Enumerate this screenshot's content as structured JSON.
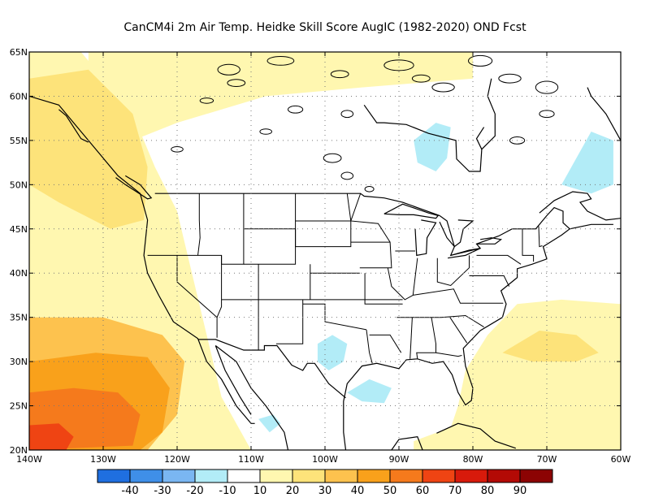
{
  "title": "CanCM4i  2m Air Temp. Heidke Skill Score AugIC (1982-2020) OND Fcst",
  "map": {
    "lon_range": [
      -140,
      -60
    ],
    "lat_range": [
      20,
      65
    ],
    "lat_ticks": [
      {
        "value": 65,
        "label": "65N"
      },
      {
        "value": 60,
        "label": "60N"
      },
      {
        "value": 55,
        "label": "55N"
      },
      {
        "value": 50,
        "label": "50N"
      },
      {
        "value": 45,
        "label": "45N"
      },
      {
        "value": 40,
        "label": "40N"
      },
      {
        "value": 35,
        "label": "35N"
      },
      {
        "value": 30,
        "label": "30N"
      },
      {
        "value": 25,
        "label": "25N"
      },
      {
        "value": 20,
        "label": "20N"
      }
    ],
    "lon_ticks": [
      {
        "value": -140,
        "label": "140W"
      },
      {
        "value": -130,
        "label": "130W"
      },
      {
        "value": -120,
        "label": "120W"
      },
      {
        "value": -110,
        "label": "110W"
      },
      {
        "value": -100,
        "label": "100W"
      },
      {
        "value": -90,
        "label": "90W"
      },
      {
        "value": -80,
        "label": "80W"
      },
      {
        "value": -70,
        "label": "70W"
      },
      {
        "value": -60,
        "label": "60W"
      }
    ],
    "grid": "dotted"
  },
  "colorbar": {
    "colors": [
      "#1f6fe0",
      "#3f8fe8",
      "#7ab6f2",
      "#b2ecf7",
      "#ffffff",
      "#fff7b0",
      "#fde37a",
      "#fdc24e",
      "#f9a11b",
      "#f57a1c",
      "#ef4413",
      "#d81a0b",
      "#b30a05",
      "#8c0303"
    ],
    "labels": [
      "-40",
      "-30",
      "-20",
      "-10",
      "10",
      "20",
      "30",
      "40",
      "50",
      "60",
      "70",
      "80",
      "90"
    ]
  },
  "skill_regions": [
    {
      "level": 20,
      "color": "#fff7b0",
      "area": "northern Canada patches",
      "lon": [
        -132,
        -80
      ],
      "lat": [
        55,
        65
      ]
    },
    {
      "level": 20,
      "color": "#fff7b0",
      "area": "North Pacific",
      "lon": [
        -140,
        -118
      ],
      "lat": [
        20,
        65
      ]
    },
    {
      "level": 30,
      "color": "#fde37a",
      "area": "Gulf of Alaska coast",
      "lon": [
        -140,
        -124
      ],
      "lat": [
        45,
        65
      ]
    },
    {
      "level": 40,
      "color": "#fdc24e",
      "area": "subtropical East Pacific",
      "lon": [
        -140,
        -119
      ],
      "lat": [
        20,
        35
      ]
    },
    {
      "level": 50,
      "color": "#f9a11b",
      "area": "subtropical East Pacific core",
      "lon": [
        -140,
        -121
      ],
      "lat": [
        20,
        30
      ]
    },
    {
      "level": 60,
      "color": "#f57a1c",
      "area": "subtropical East Pacific max",
      "lon": [
        -140,
        -125
      ],
      "lat": [
        20,
        27
      ]
    },
    {
      "level": 70,
      "color": "#ef4413",
      "area": "southwest corner",
      "lon": [
        -140,
        -134
      ],
      "lat": [
        20,
        22.5
      ]
    },
    {
      "level": 20,
      "color": "#fff7b0",
      "area": "western Atlantic",
      "lon": [
        -81,
        -60
      ],
      "lat": [
        20,
        37
      ]
    },
    {
      "level": 30,
      "color": "#fde37a",
      "area": "Sargasso Sea",
      "lon": [
        -76,
        -63
      ],
      "lat": [
        30,
        34
      ]
    },
    {
      "level": 20,
      "color": "#fff7b0",
      "area": "Caribbean",
      "lon": [
        -88,
        -60
      ],
      "lat": [
        20,
        24
      ]
    },
    {
      "level": -10,
      "color": "#b2ecf7",
      "area": "Hudson Bay",
      "lon": [
        -88,
        -83
      ],
      "lat": [
        51,
        57
      ]
    },
    {
      "level": -10,
      "color": "#b2ecf7",
      "area": "Labrador",
      "lon": [
        -68,
        -61
      ],
      "lat": [
        49,
        56
      ]
    },
    {
      "level": -10,
      "color": "#b2ecf7",
      "area": "Texas",
      "lon": [
        -101,
        -97
      ],
      "lat": [
        29,
        33
      ]
    },
    {
      "level": -10,
      "color": "#b2ecf7",
      "area": "western Gulf of Mexico",
      "lon": [
        -97,
        -91
      ],
      "lat": [
        25,
        28
      ]
    },
    {
      "level": -10,
      "color": "#b2ecf7",
      "area": "northern Mexico",
      "lon": [
        -109,
        -106
      ],
      "lat": [
        22,
        24
      ]
    }
  ]
}
